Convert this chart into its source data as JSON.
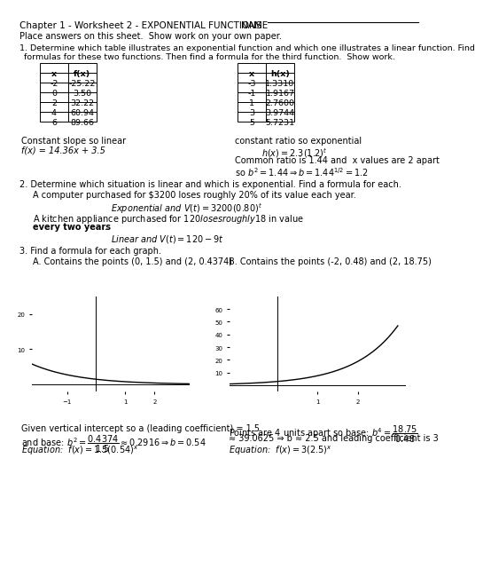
{
  "title": "Chapter 1 - Worksheet 2 - EXPONENTIAL FUNCTIONS",
  "name_label": "NAME",
  "subtitle": "Place answers on this sheet.  Show work on your own paper.",
  "table1_rows": [
    [
      "x",
      "f(x)"
    ],
    [
      "-2",
      "-25.22"
    ],
    [
      "0",
      "3.50"
    ],
    [
      "2",
      "32.22"
    ],
    [
      "4",
      "60.94"
    ],
    [
      "6",
      "89.66"
    ]
  ],
  "table2_rows": [
    [
      "x",
      "h(x)"
    ],
    [
      "-3",
      "1.3310"
    ],
    [
      "-1",
      "1.9167"
    ],
    [
      "1",
      "2.7600"
    ],
    [
      "3",
      "3.9744"
    ],
    [
      "5",
      "5.7231"
    ]
  ],
  "linear_label": "Constant slope so linear",
  "linear_formula": "f(x) = 14.36x + 3.5",
  "exp_label": "constant ratio so exponential",
  "exp_note1": "Common ratio is 1.44 and  x values are 2 apart",
  "q2_text": "2. Determine which situation is linear and which is exponential. Find a formula for each.",
  "q2a": "A computer purchased for $3200 loses roughly 20% of its value each year.",
  "q2b_pre": "A kitchen appliance purchased for $120 loses roughly $18 in value ",
  "q2b_bold": "every two years",
  "q2b_end": ".",
  "q3_text": "3. Find a formula for each graph.",
  "q3a_label": "A. Contains the points (0, 1.5) and (2, 0.4374)",
  "q3b_label": "B. Contains the points (-2, 0.48) and (2, 18.75)",
  "q3a_bot1": "Given vertical intercept so a (leading coefficient) = 1.5",
  "q3b_bot1": "Points are 4 units apart so base: ",
  "q3b_bot2": "≈ 39.0625 ⇒ b ≈ 2.5 and leading coefficient is 3",
  "bg_color": "#ffffff"
}
